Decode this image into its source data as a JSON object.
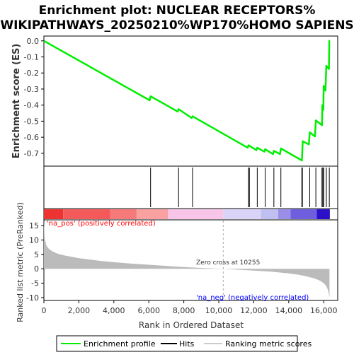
{
  "chart_data": {
    "type": "line",
    "title_line1": "Enrichment plot: NUCLEAR RECEPTORS%",
    "title_line2": "WIKIPATHWAYS_20250210%WP170%HOMO SAPIENS",
    "es_panel": {
      "ylabel": "Enrichment score (ES)",
      "ylim": [
        -0.78,
        0.03
      ],
      "yticks": [
        0.0,
        -0.1,
        -0.2,
        -0.3,
        -0.4,
        -0.5,
        -0.6,
        -0.7
      ],
      "ytick_labels": [
        "0.0",
        "-0.1",
        "-0.2",
        "-0.3",
        "-0.4",
        "-0.5",
        "-0.6",
        "-0.7"
      ],
      "line_color": "#00ee00",
      "series": [
        {
          "x": [
            0,
            6050,
            6100,
            7650,
            7700,
            8450,
            8500,
            11650,
            11700,
            12150,
            12200,
            12600,
            12650,
            13100,
            13150,
            13500,
            13550,
            14750,
            14800,
            15150,
            15200,
            15500,
            15550,
            15900,
            15920,
            15980,
            16000,
            16100,
            16150,
            16300,
            16320,
            16350
          ],
          "y": [
            0.0,
            -0.37,
            -0.345,
            -0.44,
            -0.425,
            -0.48,
            -0.47,
            -0.665,
            -0.65,
            -0.68,
            -0.665,
            -0.69,
            -0.675,
            -0.705,
            -0.685,
            -0.705,
            -0.67,
            -0.745,
            -0.625,
            -0.645,
            -0.57,
            -0.595,
            -0.495,
            -0.525,
            -0.4,
            -0.43,
            -0.28,
            -0.31,
            -0.155,
            -0.175,
            0.0,
            0.0
          ]
        }
      ]
    },
    "hits": [
      6100,
      7700,
      8500,
      11700,
      11750,
      12200,
      12650,
      13150,
      13550,
      14750,
      14780,
      15200,
      15550,
      15900,
      15950,
      16000,
      16150,
      16320
    ],
    "ranking_panel": {
      "ylabel": "Ranked list metric (PreRanked)",
      "ylim": [
        -11,
        17
      ],
      "yticks": [
        15,
        10,
        5,
        0,
        -5,
        -10
      ],
      "ytick_labels": [
        "15",
        "10",
        "5",
        "0",
        "-5",
        "-10"
      ],
      "xlabel": "Rank in Ordered Dataset",
      "xlim": [
        0,
        16800
      ],
      "xticks": [
        0,
        2000,
        4000,
        6000,
        8000,
        10000,
        12000,
        14000,
        16000
      ],
      "xtick_labels": [
        "0",
        "2,000",
        "4,000",
        "6,000",
        "8,000",
        "10,000",
        "12,000",
        "14,000",
        "16,000"
      ],
      "zero_cross_rank": 10255,
      "zero_cross_label": "Zero cross at 10255",
      "pos_label": "'na_pos' (positively correlated)",
      "neg_label": "'na_neg' (negatively correlated)",
      "metric_curve": {
        "x": [
          0,
          50,
          150,
          300,
          500,
          800,
          1200,
          2000,
          3000,
          4000,
          5000,
          6000,
          7000,
          8000,
          9000,
          10255,
          11000,
          12000,
          13000,
          14000,
          14500,
          15000,
          15500,
          15800,
          16000,
          16150,
          16250,
          16330
        ],
        "y": [
          16.5,
          10.5,
          8.0,
          6.8,
          6.0,
          5.2,
          4.6,
          3.7,
          2.9,
          2.3,
          1.8,
          1.4,
          1.0,
          0.6,
          0.3,
          0.0,
          -0.3,
          -0.6,
          -1.0,
          -1.6,
          -2.0,
          -2.6,
          -3.4,
          -4.2,
          -5.0,
          -6.0,
          -7.5,
          -10.0
        ]
      }
    },
    "legend": {
      "items": [
        "Enrichment profile",
        "Hits",
        "Ranking metric scores"
      ]
    },
    "colors": {
      "es_line": "#00ee00",
      "pos_label": "#ff0000",
      "neg_label": "#0000ff",
      "metric_fill": "#bbbbbb",
      "zero_cross_line": "#aaaaaa"
    },
    "heatbar": {
      "segments": [
        {
          "from": 0,
          "to": 1100,
          "color": "#ee3333"
        },
        {
          "from": 1100,
          "to": 3800,
          "color": "#f55a5a"
        },
        {
          "from": 3800,
          "to": 5300,
          "color": "#f77a7a"
        },
        {
          "from": 5300,
          "to": 7100,
          "color": "#f9a0a0"
        },
        {
          "from": 7100,
          "to": 10255,
          "color": "#f8c4e8"
        },
        {
          "from": 10255,
          "to": 12400,
          "color": "#d9d4f8"
        },
        {
          "from": 12400,
          "to": 13400,
          "color": "#c0bff2"
        },
        {
          "from": 13400,
          "to": 14100,
          "color": "#9a8ee8"
        },
        {
          "from": 14100,
          "to": 15600,
          "color": "#6f5fde"
        },
        {
          "from": 15600,
          "to": 16350,
          "color": "#2b10c8"
        }
      ]
    }
  }
}
